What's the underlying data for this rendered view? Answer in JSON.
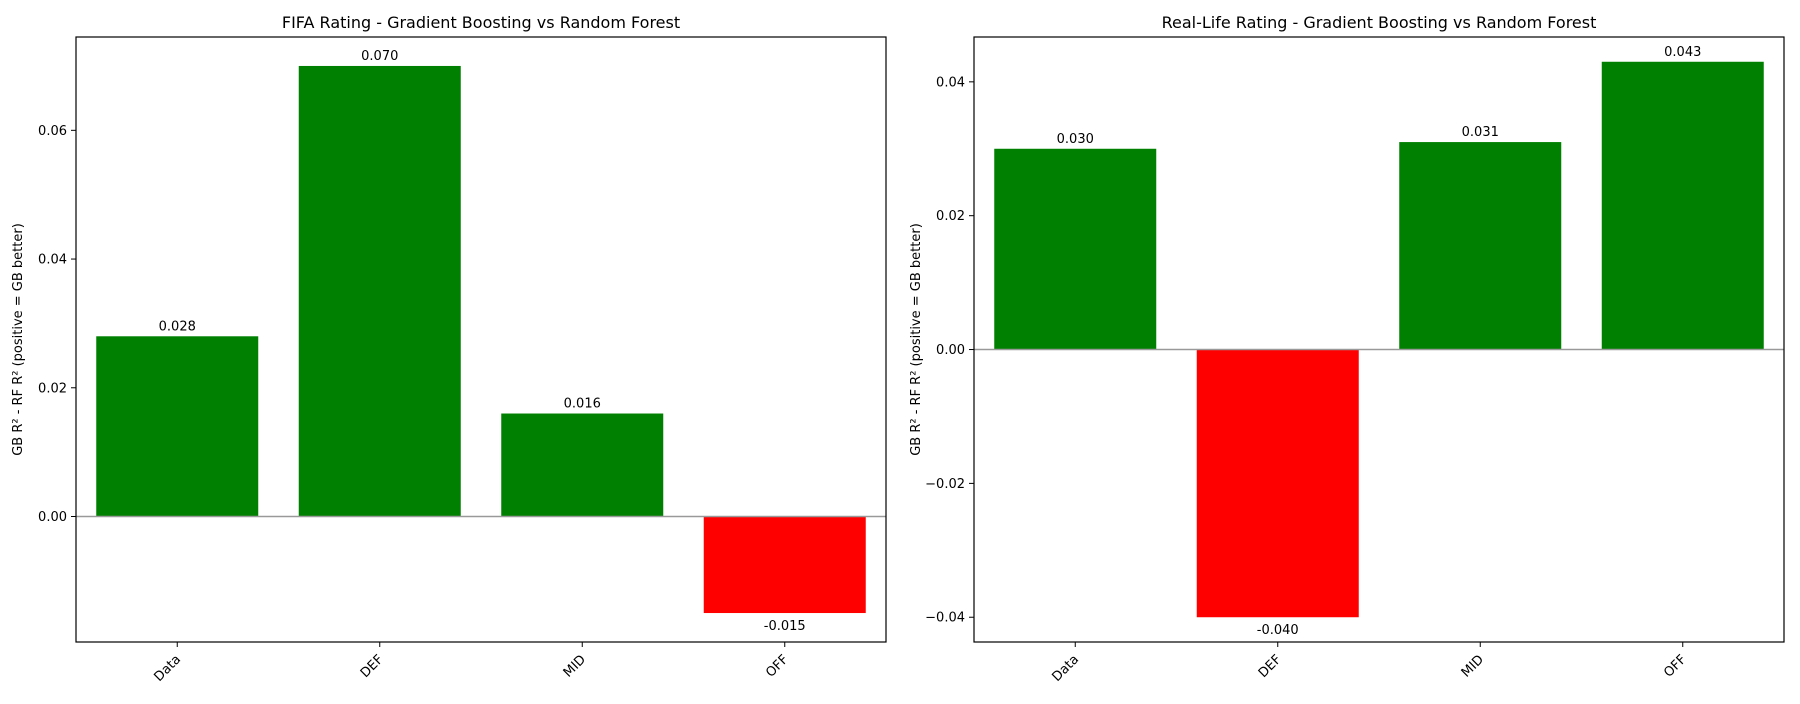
{
  "chart_data": [
    {
      "type": "bar",
      "title": "FIFA Rating - Gradient Boosting vs Random Forest",
      "xlabel": "",
      "ylabel": "GB R² - RF R² (positive = GB better)",
      "categories": [
        "Data",
        "DEF",
        "MID",
        "OFF"
      ],
      "values": [
        0.028,
        0.07,
        0.016,
        -0.015
      ],
      "value_labels": [
        "0.028",
        "0.070",
        "0.016",
        "-0.015"
      ],
      "ylim": [
        -0.0195,
        0.0745
      ],
      "yticks": [
        0.0,
        0.02,
        0.04,
        0.06
      ],
      "ytick_labels": [
        "0.00",
        "0.02",
        "0.04",
        "0.06"
      ],
      "zero_line": true,
      "grid": false,
      "colors": {
        "positive": "#008000",
        "negative": "#ff0000",
        "zero_line": "#999999"
      }
    },
    {
      "type": "bar",
      "title": "Real-Life Rating - Gradient Boosting vs Random Forest",
      "xlabel": "",
      "ylabel": "GB R² - RF R² (positive = GB better)",
      "categories": [
        "Data",
        "DEF",
        "MID",
        "OFF"
      ],
      "values": [
        0.03,
        -0.04,
        0.031,
        0.043
      ],
      "value_labels": [
        "0.030",
        "-0.040",
        "0.031",
        "0.043"
      ],
      "ylim": [
        -0.0437,
        0.0467
      ],
      "yticks": [
        -0.04,
        -0.02,
        0.0,
        0.02,
        0.04
      ],
      "ytick_labels": [
        "−0.04",
        "−0.02",
        "0.00",
        "0.02",
        "0.04"
      ],
      "zero_line": true,
      "grid": false,
      "colors": {
        "positive": "#008000",
        "negative": "#ff0000",
        "zero_line": "#999999"
      }
    }
  ]
}
